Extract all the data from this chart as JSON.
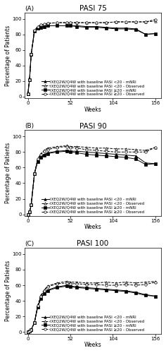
{
  "title_A": "PASI 75",
  "title_B": "PASI 90",
  "title_C": "PASI 100",
  "panel_labels": [
    "(A)",
    "(B)",
    "(C)"
  ],
  "xlabel": "Weeks",
  "ylabel": "Percentage of Patients",
  "xticks": [
    0,
    52,
    104,
    156
  ],
  "yticks": [
    0,
    20,
    40,
    60,
    80,
    100
  ],
  "ylim": [
    -2,
    108
  ],
  "xlim": [
    -4,
    163
  ],
  "weeks": [
    0,
    2,
    4,
    8,
    12,
    16,
    20,
    24,
    36,
    48,
    52,
    60,
    72,
    84,
    96,
    108,
    120,
    132,
    144,
    156
  ],
  "pasi75_lt20_mnri": [
    4,
    22,
    54,
    84,
    88,
    89,
    90,
    91,
    91,
    91,
    91,
    91,
    90,
    90,
    89,
    88,
    88,
    87,
    80,
    81
  ],
  "pasi75_lt20_obs": [
    4,
    22,
    54,
    85,
    90,
    92,
    93,
    94,
    95,
    95,
    95,
    95,
    95,
    95,
    95,
    96,
    96,
    96,
    96,
    97
  ],
  "pasi75_ge20_mnri": [
    4,
    22,
    54,
    84,
    88,
    89,
    90,
    91,
    91,
    91,
    91,
    90,
    89,
    89,
    88,
    87,
    87,
    86,
    80,
    81
  ],
  "pasi75_ge20_obs": [
    4,
    22,
    54,
    85,
    90,
    92,
    93,
    94,
    95,
    95,
    95,
    95,
    95,
    95,
    95,
    96,
    96,
    96,
    96,
    99
  ],
  "pasi90_lt20_mnri": [
    0,
    3,
    12,
    52,
    68,
    74,
    77,
    79,
    81,
    82,
    81,
    81,
    80,
    79,
    78,
    77,
    76,
    75,
    66,
    65
  ],
  "pasi90_lt20_obs": [
    0,
    3,
    12,
    52,
    71,
    78,
    82,
    85,
    87,
    88,
    87,
    87,
    86,
    85,
    85,
    84,
    84,
    83,
    82,
    86
  ],
  "pasi90_ge20_mnri": [
    0,
    3,
    12,
    52,
    68,
    73,
    76,
    78,
    80,
    81,
    80,
    79,
    77,
    76,
    75,
    74,
    73,
    71,
    64,
    65
  ],
  "pasi90_ge20_obs": [
    0,
    3,
    12,
    52,
    71,
    77,
    81,
    83,
    86,
    87,
    86,
    85,
    83,
    82,
    81,
    80,
    80,
    80,
    80,
    86
  ],
  "pasi100_lt20_mnri": [
    0,
    1,
    3,
    12,
    32,
    44,
    50,
    54,
    58,
    60,
    59,
    58,
    57,
    56,
    55,
    54,
    53,
    51,
    48,
    46
  ],
  "pasi100_lt20_obs": [
    0,
    1,
    3,
    12,
    34,
    47,
    54,
    59,
    63,
    65,
    64,
    64,
    63,
    63,
    64,
    63,
    64,
    63,
    64,
    65
  ],
  "pasi100_ge20_mnri": [
    0,
    1,
    3,
    12,
    32,
    43,
    49,
    53,
    57,
    59,
    58,
    57,
    56,
    55,
    54,
    53,
    52,
    50,
    47,
    46
  ],
  "pasi100_ge20_obs": [
    0,
    1,
    3,
    12,
    34,
    46,
    53,
    58,
    62,
    63,
    62,
    62,
    61,
    61,
    60,
    60,
    61,
    60,
    61,
    64
  ],
  "legend_entries": [
    "IXEQ2W/Q4W with baseline PASI <20 - mNRI",
    "IXEQ2W/Q4W with baseline PASI <20 - Observed",
    "IXEQ2W/Q4W with baseline PASI ≥20 - mNRI",
    "IXEQ2W/Q4W with baseline PASI ≥20 - Observed"
  ],
  "legend_fontsize": 4.0,
  "axis_fontsize": 5.5,
  "title_fontsize": 7.5,
  "panel_label_fontsize": 6.5,
  "tick_fontsize": 5.0,
  "marker_size": 2.5,
  "line_width": 0.7
}
